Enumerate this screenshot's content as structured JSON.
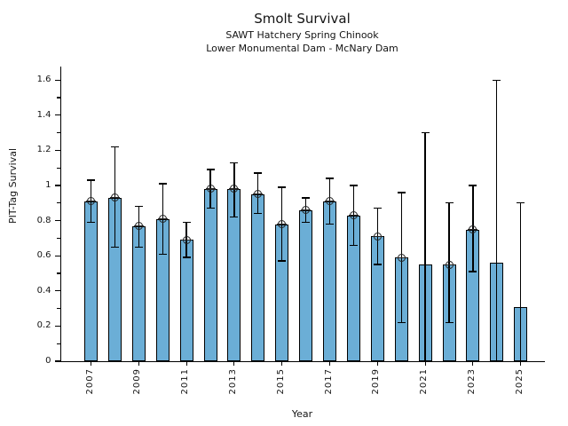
{
  "figure": {
    "title": "Smolt Survival",
    "subtitle1": "SAWT Hatchery Spring Chinook",
    "subtitle2": "Lower Monumental Dam - McNary Dam"
  },
  "chart_data": {
    "type": "bar",
    "title": "Smolt Survival",
    "subtitle1": "SAWT Hatchery Spring Chinook",
    "subtitle2": "Lower Monumental Dam - McNary Dam",
    "xlabel": "Year",
    "ylabel": "PIT-Tag Survival",
    "categories": [
      2007,
      2008,
      2009,
      2010,
      2011,
      2012,
      2013,
      2014,
      2015,
      2016,
      2017,
      2018,
      2019,
      2020,
      2021,
      2022,
      2023,
      2024,
      2025
    ],
    "values": [
      0.91,
      0.93,
      0.77,
      0.81,
      0.69,
      0.98,
      0.98,
      0.95,
      0.78,
      0.86,
      0.91,
      0.83,
      0.71,
      0.59,
      0.55,
      0.55,
      0.75,
      0.56,
      0.31
    ],
    "error_low": [
      0.79,
      0.65,
      0.65,
      0.61,
      0.59,
      0.87,
      0.82,
      0.84,
      0.57,
      0.79,
      0.78,
      0.66,
      0.55,
      0.22,
      0.0,
      0.22,
      0.51,
      0.0,
      0.0
    ],
    "error_high": [
      1.03,
      1.22,
      0.88,
      1.01,
      0.79,
      1.09,
      1.13,
      1.07,
      0.99,
      0.93,
      1.04,
      1.0,
      0.87,
      0.96,
      1.3,
      0.9,
      1.0,
      1.6,
      0.9
    ],
    "has_marker": [
      true,
      true,
      true,
      true,
      true,
      true,
      true,
      true,
      true,
      true,
      true,
      true,
      true,
      true,
      false,
      true,
      true,
      false,
      false
    ],
    "ylim": [
      0,
      1.68
    ],
    "yticks": [
      0,
      0.2,
      0.4,
      0.6,
      0.8,
      1.0,
      1.2,
      1.4,
      1.6
    ],
    "ytick_labels": [
      "0",
      "0.2",
      "0.4",
      "0.6",
      "0.8",
      "1",
      "1.2",
      "1.4",
      "1.6"
    ],
    "yticks_minor": [
      0.1,
      0.3,
      0.5,
      0.7,
      0.9,
      1.1,
      1.3,
      1.5
    ],
    "xtick_labels": [
      "2007",
      "2009",
      "2011",
      "2013",
      "2015",
      "2017",
      "2019",
      "2021",
      "2023",
      "2025"
    ],
    "bar_color": "#6BAED6",
    "edge_color": "#000000",
    "errorbar_color": "#000000",
    "grid": false,
    "legend": null
  }
}
